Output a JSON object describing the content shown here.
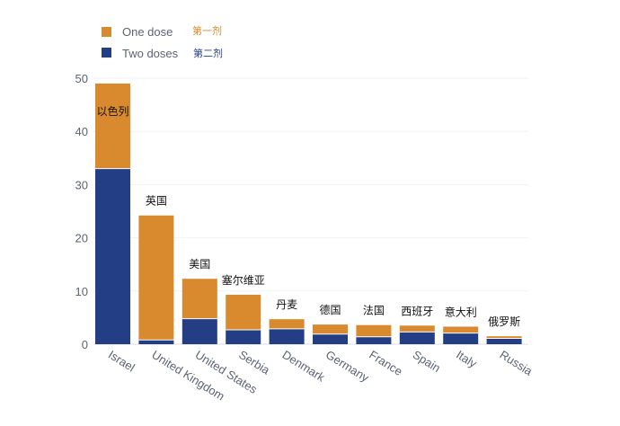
{
  "legend": [
    {
      "name": "One dose",
      "name_cn": "第一剂",
      "color": "#d98a2e",
      "cn_color": "#d98a2e"
    },
    {
      "name": "Two doses",
      "name_cn": "第二剂",
      "color": "#233e85",
      "cn_color": "#233e85"
    }
  ],
  "colors": {
    "one_dose": "#d98a2e",
    "two_doses": "#233e85",
    "gridline": "#f0f2f5",
    "axis_text": "#5b6473"
  },
  "chart_data": {
    "type": "bar",
    "stacked": true,
    "categories": [
      "Israel",
      "United Kingdom",
      "United States",
      "Serbia",
      "Denmark",
      "Germany",
      "France",
      "Spain",
      "Italy",
      "Russia"
    ],
    "category_labels_cn": [
      "以色列",
      "英国",
      "美国",
      "塞尔维亚",
      "丹麦",
      "德国",
      "法国",
      "西班牙",
      "意大利",
      "俄罗斯"
    ],
    "series": [
      {
        "name": "Two doses",
        "values": [
          33,
          0.8,
          4.8,
          2.7,
          2.9,
          1.9,
          1.4,
          2.3,
          2.1,
          1.1
        ]
      },
      {
        "name": "One dose",
        "values": [
          16,
          23.4,
          7.5,
          6.6,
          1.8,
          1.8,
          2.2,
          1.2,
          1.2,
          0.4
        ]
      }
    ],
    "ylim": [
      0,
      50
    ],
    "yticks": [
      0,
      10,
      20,
      30,
      40,
      50
    ],
    "grid": true,
    "legend_position": "top-left"
  }
}
